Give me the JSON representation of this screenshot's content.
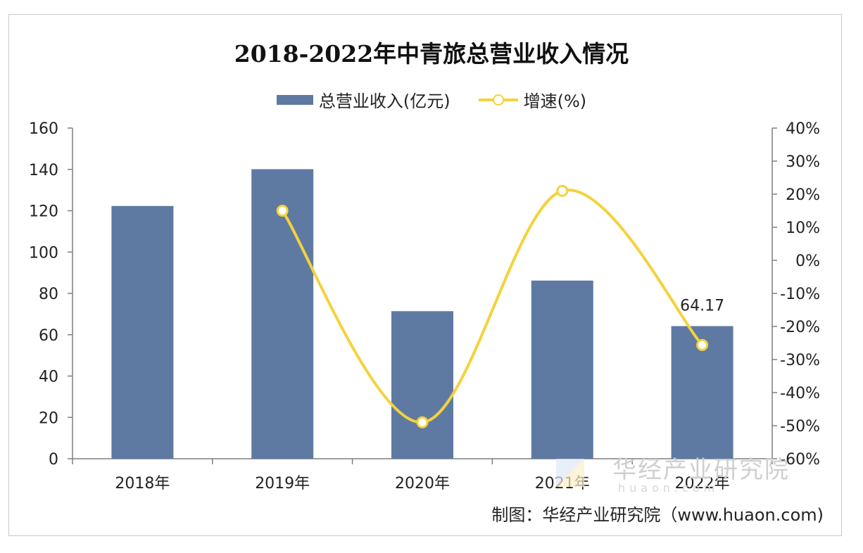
{
  "title": "2018-2022年中青旅总营业收入情况",
  "legend": {
    "bar_label": "总营业收入(亿元)",
    "line_label": "增速(%)"
  },
  "footer": "制图：华经产业研究院（www.huaon.com)",
  "watermark": {
    "text": "华经产业研究院",
    "sub": "huaon.com"
  },
  "colors": {
    "bar": "#5f7aa2",
    "line": "#f4d23c",
    "axis": "#7f7f7f"
  },
  "chart_data": {
    "type": "bar",
    "title": "2018-2022年中青旅总营业收入情况",
    "categories": [
      "2018年",
      "2019年",
      "2020年",
      "2021年",
      "2022年"
    ],
    "series": [
      {
        "name": "总营业收入(亿元)",
        "type": "bar",
        "axis": "left",
        "values": [
          122.3,
          140.1,
          71.4,
          86.2,
          64.17
        ]
      },
      {
        "name": "增速(%)",
        "type": "line",
        "axis": "right",
        "values": [
          null,
          15.0,
          -49.0,
          21.0,
          -25.6
        ]
      }
    ],
    "data_labels": [
      {
        "series": 0,
        "index": 4,
        "text": "64.17"
      }
    ],
    "y_left": {
      "min": 0,
      "max": 160,
      "ticks": [
        "0",
        "20",
        "40",
        "60",
        "80",
        "100",
        "120",
        "140",
        "160"
      ]
    },
    "y_right": {
      "min": -60,
      "max": 40,
      "ticks": [
        "-60%",
        "-50%",
        "-40%",
        "-30%",
        "-20%",
        "-10%",
        "0%",
        "10%",
        "20%",
        "30%",
        "40%"
      ]
    },
    "grid": false,
    "legend_position": "top"
  }
}
